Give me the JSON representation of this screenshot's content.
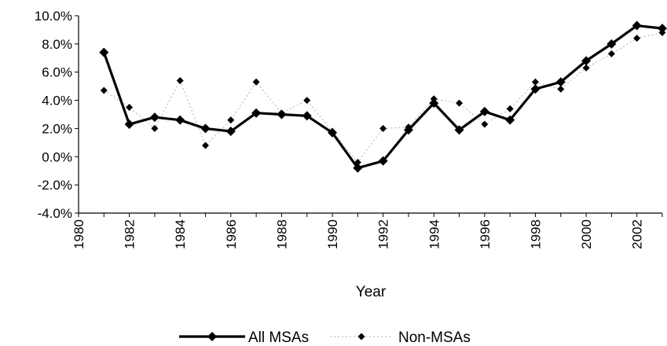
{
  "chart_data": {
    "type": "line",
    "xlabel": "Year",
    "ylabel": "",
    "xlim": [
      1980,
      2003
    ],
    "ylim": [
      -4.0,
      10.0
    ],
    "x_ticks": [
      "1980",
      "1982",
      "1984",
      "1986",
      "1988",
      "1990",
      "1992",
      "1994",
      "1996",
      "1998",
      "2000",
      "2002"
    ],
    "y_ticks": [
      "10.0%",
      "8.0%",
      "6.0%",
      "4.0%",
      "2.0%",
      "0.0%",
      "-2.0%",
      "-4.0%"
    ],
    "grid": false,
    "legend_position": "bottom",
    "x": [
      1981,
      1982,
      1983,
      1984,
      1985,
      1986,
      1987,
      1988,
      1989,
      1990,
      1991,
      1992,
      1993,
      1994,
      1995,
      1996,
      1997,
      1998,
      1999,
      2000,
      2001,
      2002,
      2003
    ],
    "series": [
      {
        "name": "All MSAs",
        "color": "#000000",
        "line": "solid",
        "values": [
          7.4,
          2.3,
          2.8,
          2.6,
          2.0,
          1.8,
          3.1,
          3.0,
          2.9,
          1.7,
          -0.8,
          -0.3,
          1.9,
          3.8,
          1.9,
          3.2,
          2.6,
          4.8,
          5.3,
          6.8,
          8.0,
          9.3,
          9.1
        ]
      },
      {
        "name": "Non-MSAs",
        "color": "#000000",
        "line": "dotted",
        "values": [
          4.7,
          3.5,
          2.0,
          5.4,
          0.8,
          2.6,
          5.3,
          3.1,
          4.0,
          1.8,
          -0.4,
          2.0,
          2.1,
          4.1,
          3.8,
          2.3,
          3.4,
          5.3,
          4.8,
          6.3,
          7.3,
          8.4,
          8.8
        ]
      }
    ]
  }
}
